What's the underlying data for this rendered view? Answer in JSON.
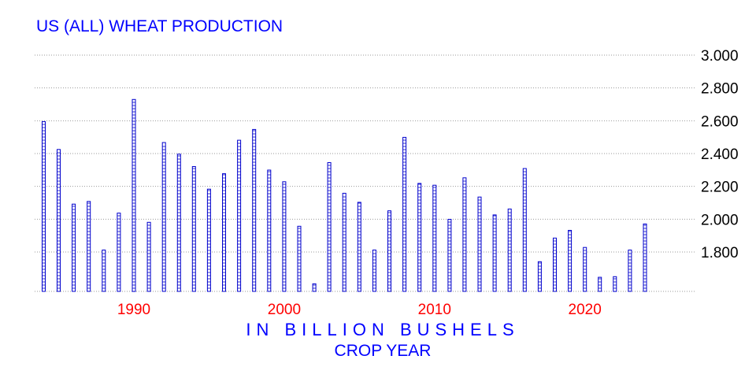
{
  "chart_data": {
    "type": "bar",
    "title": "US (ALL) WHEAT PRODUCTION",
    "xlabel_line1": "IN BILLION BUSHELS",
    "xlabel_line2": "CROP YEAR",
    "x": [
      1984,
      1985,
      1986,
      1987,
      1988,
      1989,
      1990,
      1991,
      1992,
      1993,
      1994,
      1995,
      1996,
      1997,
      1998,
      1999,
      2000,
      2001,
      2002,
      2003,
      2004,
      2005,
      2006,
      2007,
      2008,
      2009,
      2010,
      2011,
      2012,
      2013,
      2014,
      2015,
      2016,
      2017,
      2018,
      2019,
      2020,
      2021,
      2022,
      2023,
      2024
    ],
    "values": [
      2.595,
      2.425,
      2.092,
      2.108,
      1.812,
      2.037,
      2.73,
      1.981,
      2.467,
      2.396,
      2.321,
      2.183,
      2.277,
      2.481,
      2.547,
      2.299,
      2.228,
      1.957,
      1.606,
      2.345,
      2.158,
      2.103,
      1.812,
      2.051,
      2.499,
      2.218,
      2.207,
      1.999,
      2.252,
      2.135,
      2.026,
      2.062,
      2.309,
      1.741,
      1.885,
      1.932,
      1.828,
      1.646,
      1.65,
      1.812,
      1.971
    ],
    "ylim": [
      1.56,
      3.0
    ],
    "xlim": [
      1983.4,
      2027.3
    ],
    "yticks": [
      "3.000",
      "2.800",
      "2.600",
      "2.400",
      "2.200",
      "2.000",
      "1.800"
    ],
    "xticks": [
      "1990",
      "2000",
      "2010",
      "2020"
    ],
    "grid": true,
    "y_axis_side": "right",
    "colors": {
      "bar": "#0000cc",
      "title": "#0000ff",
      "xtick": "#ff0000",
      "grid": "#999999"
    }
  }
}
